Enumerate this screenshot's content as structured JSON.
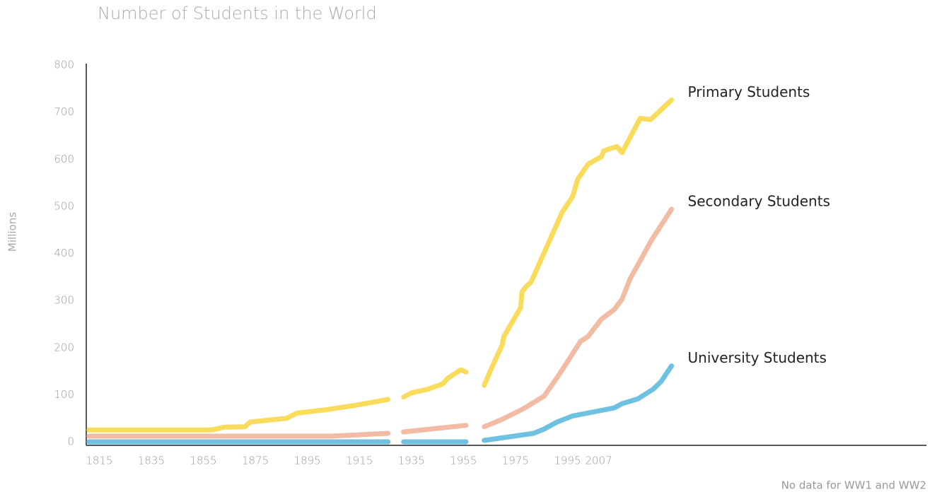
{
  "chart_data": {
    "type": "line",
    "title": "Number of Students in the World",
    "ylabel": "Millions",
    "note": "No data for WW1 and WW2",
    "xlim": [
      1810,
      2133
    ],
    "xticks": [
      1815,
      1835,
      1855,
      1875,
      1895,
      1915,
      1935,
      1955,
      1975,
      1995,
      2007
    ],
    "ylim": [
      0,
      800
    ],
    "yticks": [
      0,
      100,
      200,
      300,
      400,
      500,
      600,
      700,
      800
    ],
    "grid": false,
    "series": [
      {
        "name": "Primary Students",
        "color": "#f9dc5c",
        "x": [
          1811,
          1858,
          1863,
          1871,
          1873,
          1887,
          1891,
          1902,
          1913,
          1926,
          1929,
          1932,
          1935,
          1941,
          1947,
          1949,
          1954,
          1956,
          1959,
          1963,
          1966,
          1970,
          1970.5,
          1977,
          1977.5,
          1979,
          1981,
          1993,
          1997,
          1999,
          2003,
          2008,
          2009,
          2014,
          2016,
          2023,
          2027,
          2035
        ],
        "values": [
          25,
          25,
          31,
          32,
          42,
          50,
          61,
          68,
          77,
          90,
          null,
          95,
          104,
          111,
          123,
          135,
          153,
          148,
          null,
          120,
          159,
          207,
          223,
          285,
          318,
          329,
          339,
          488,
          521,
          558,
          590,
          605,
          618,
          627,
          614,
          687,
          684,
          726
        ]
      },
      {
        "name": "Secondary Students",
        "color": "#f2bba4",
        "x": [
          1811,
          1904,
          1926,
          1929,
          1932,
          1956,
          1959,
          1963,
          1970,
          1978,
          1986,
          1990,
          1993,
          2000,
          2003,
          2008,
          2013,
          2016,
          2019,
          2024,
          2027,
          2035
        ],
        "values": [
          12,
          12,
          18,
          null,
          21,
          35,
          null,
          32,
          48,
          70,
          97,
          128,
          153,
          213,
          224,
          260,
          281,
          303,
          345,
          395,
          425,
          494
        ]
      },
      {
        "name": "University Students",
        "color": "#6ec1e0",
        "x": [
          1811,
          1926,
          1929,
          1932,
          1956,
          1959,
          1963,
          1982,
          1986,
          1991,
          1997,
          2013,
          2016,
          2022,
          2028,
          2031,
          2035
        ],
        "values": [
          0,
          0,
          null,
          0,
          0,
          null,
          3,
          18,
          27,
          42,
          55,
          72,
          81,
          91,
          112,
          128,
          161
        ]
      }
    ]
  }
}
